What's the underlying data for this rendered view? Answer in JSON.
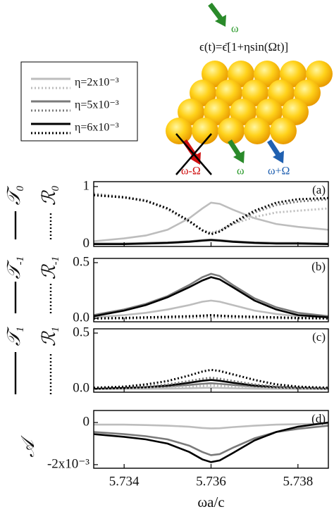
{
  "legend": {
    "entries": [
      {
        "name": "η=2x10⁻³",
        "color": "#bdbdbd"
      },
      {
        "name": "η=5x10⁻³",
        "color": "#7a7a7a"
      },
      {
        "name": "η=6x10⁻³",
        "color": "#000000"
      }
    ]
  },
  "illustration": {
    "incident": "ω",
    "equation": "ϵ(t)=ϵ̄[1+ηsin(Ωt)]",
    "lower": "ω-Ω",
    "center": "ω",
    "upper": "ω+Ω"
  },
  "chart_data": [
    {
      "type": "line",
      "panel_label": "(a)",
      "y_labels": [
        {
          "symbol": "𝒯",
          "sub": "0"
        },
        {
          "symbol": "ℛ",
          "sub": "0"
        }
      ],
      "x": [
        5.7333,
        5.734,
        5.7345,
        5.735,
        5.7355,
        5.7358,
        5.736,
        5.7362,
        5.7365,
        5.737,
        5.7375,
        5.738,
        5.7387
      ],
      "xlim": [
        5.7333,
        5.7387
      ],
      "ylim": [
        -0.04,
        1.085
      ],
      "yticks": [
        0,
        1
      ],
      "series": [
        {
          "color": "#bdbdbd",
          "style": "solid",
          "values": [
            0.05,
            0.1,
            0.15,
            0.25,
            0.45,
            0.62,
            0.72,
            0.7,
            0.6,
            0.45,
            0.35,
            0.3,
            0.25
          ]
        },
        {
          "color": "#7a7a7a",
          "style": "solid",
          "values": [
            0.01,
            0.01,
            0.02,
            0.03,
            0.05,
            0.07,
            0.08,
            0.07,
            0.05,
            0.03,
            0.02,
            0.02,
            0.01
          ]
        },
        {
          "color": "#000000",
          "style": "solid",
          "values": [
            0,
            0,
            0.01,
            0.02,
            0.04,
            0.06,
            0.07,
            0.06,
            0.04,
            0.02,
            0.01,
            0.01,
            0
          ]
        },
        {
          "color": "#bdbdbd",
          "style": "dotted",
          "values": [
            0.88,
            0.82,
            0.75,
            0.6,
            0.38,
            0.24,
            0.2,
            0.24,
            0.35,
            0.47,
            0.55,
            0.58,
            0.62
          ]
        },
        {
          "color": "#7a7a7a",
          "style": "dotted",
          "values": [
            0.86,
            0.82,
            0.76,
            0.62,
            0.4,
            0.24,
            0.18,
            0.22,
            0.35,
            0.55,
            0.68,
            0.74,
            0.78
          ]
        },
        {
          "color": "#000000",
          "style": "dotted",
          "values": [
            0.85,
            0.81,
            0.75,
            0.62,
            0.4,
            0.24,
            0.17,
            0.22,
            0.37,
            0.58,
            0.72,
            0.78,
            0.8
          ]
        }
      ]
    },
    {
      "type": "line",
      "panel_label": "(b)",
      "y_labels": [
        {
          "symbol": "𝒯",
          "sub": "-1"
        },
        {
          "symbol": "ℛ",
          "sub": "-1"
        }
      ],
      "x": [
        5.7333,
        5.734,
        5.7345,
        5.735,
        5.7355,
        5.7358,
        5.736,
        5.7362,
        5.7365,
        5.737,
        5.7375,
        5.738,
        5.7387
      ],
      "xlim": [
        5.7333,
        5.7387
      ],
      "ylim": [
        -0.03,
        0.538
      ],
      "yticks": [
        {
          "value": 0,
          "label": "0.0"
        },
        0.5
      ],
      "series": [
        {
          "color": "#bdbdbd",
          "style": "solid",
          "values": [
            0.01,
            0.03,
            0.05,
            0.08,
            0.12,
            0.15,
            0.16,
            0.15,
            0.12,
            0.07,
            0.04,
            0.02,
            0.01
          ]
        },
        {
          "color": "#7a7a7a",
          "style": "solid",
          "values": [
            0.03,
            0.08,
            0.13,
            0.2,
            0.3,
            0.37,
            0.4,
            0.38,
            0.3,
            0.18,
            0.1,
            0.05,
            0.02
          ]
        },
        {
          "color": "#000000",
          "style": "solid",
          "values": [
            0.02,
            0.07,
            0.12,
            0.19,
            0.28,
            0.34,
            0.37,
            0.35,
            0.28,
            0.16,
            0.08,
            0.03,
            0.01
          ]
        },
        {
          "color": "#bdbdbd",
          "style": "dotted",
          "values": [
            0,
            0,
            0,
            0,
            0.005,
            0.008,
            0.01,
            0.008,
            0.005,
            0,
            0,
            0,
            0
          ]
        },
        {
          "color": "#7a7a7a",
          "style": "dotted",
          "values": [
            0,
            0,
            0.005,
            0.01,
            0.015,
            0.02,
            0.02,
            0.02,
            0.015,
            0.01,
            0.005,
            0,
            0
          ]
        },
        {
          "color": "#000000",
          "style": "dotted",
          "values": [
            0,
            0.005,
            0.01,
            0.015,
            0.02,
            0.025,
            0.03,
            0.025,
            0.02,
            0.015,
            0.01,
            0.005,
            0
          ]
        }
      ]
    },
    {
      "type": "line",
      "panel_label": "(c)",
      "y_labels": [
        {
          "symbol": "𝒯",
          "sub": "1"
        },
        {
          "symbol": "ℛ",
          "sub": "1"
        }
      ],
      "x": [
        5.7333,
        5.734,
        5.7345,
        5.735,
        5.7355,
        5.7358,
        5.736,
        5.7362,
        5.7365,
        5.737,
        5.7375,
        5.738,
        5.7387
      ],
      "xlim": [
        5.7333,
        5.7387
      ],
      "ylim": [
        -0.03,
        0.538
      ],
      "yticks": [
        {
          "value": 0,
          "label": "0.0"
        },
        0.5
      ],
      "series": [
        {
          "color": "#bdbdbd",
          "style": "solid",
          "values": [
            0,
            0,
            0,
            0.002,
            0.005,
            0.008,
            0.01,
            0.008,
            0.005,
            0.002,
            0,
            0,
            0
          ]
        },
        {
          "color": "#7a7a7a",
          "style": "solid",
          "values": [
            0,
            0.005,
            0.01,
            0.02,
            0.035,
            0.045,
            0.05,
            0.045,
            0.035,
            0.02,
            0.01,
            0.005,
            0
          ]
        },
        {
          "color": "#000000",
          "style": "solid",
          "values": [
            0,
            0.008,
            0.015,
            0.03,
            0.055,
            0.072,
            0.08,
            0.072,
            0.055,
            0.03,
            0.015,
            0.008,
            0
          ]
        },
        {
          "color": "#bdbdbd",
          "style": "dotted",
          "values": [
            0,
            0.002,
            0.005,
            0.01,
            0.02,
            0.027,
            0.03,
            0.027,
            0.02,
            0.01,
            0.005,
            0.002,
            0
          ]
        },
        {
          "color": "#7a7a7a",
          "style": "dotted",
          "values": [
            0.005,
            0.01,
            0.02,
            0.04,
            0.07,
            0.09,
            0.1,
            0.09,
            0.07,
            0.04,
            0.02,
            0.01,
            0.005
          ]
        },
        {
          "color": "#000000",
          "style": "dotted",
          "values": [
            0.01,
            0.02,
            0.04,
            0.07,
            0.12,
            0.155,
            0.17,
            0.16,
            0.13,
            0.08,
            0.04,
            0.02,
            0.01
          ]
        }
      ]
    },
    {
      "type": "line",
      "panel_label": "(d)",
      "y_labels": [
        {
          "symbol": "𝒜"
        }
      ],
      "x": [
        5.7333,
        5.734,
        5.7345,
        5.735,
        5.7355,
        5.7358,
        5.736,
        5.7362,
        5.7365,
        5.737,
        5.7375,
        5.738,
        5.7387
      ],
      "xlim": [
        5.7333,
        5.7387
      ],
      "ylim": [
        -0.00217,
        0.00057
      ],
      "yticks": [
        0,
        {
          "value": -0.002,
          "label": "-2x10⁻³"
        }
      ],
      "xticks": [
        5.734,
        5.736,
        5.738
      ],
      "xlabel": "ωa/c",
      "series": [
        {
          "color": "#bdbdbd",
          "style": "solid",
          "values": [
            -0.0001,
            -0.0001,
            -0.00012,
            -0.00015,
            -0.0002,
            -0.00026,
            -0.00028,
            -0.00027,
            -0.00022,
            -0.00015,
            -0.0001,
            -8e-05,
            -5e-05
          ]
        },
        {
          "color": "#7a7a7a",
          "style": "solid",
          "values": [
            -0.00045,
            -0.00055,
            -0.00065,
            -0.0008,
            -0.0011,
            -0.0014,
            -0.00155,
            -0.0015,
            -0.0012,
            -0.00075,
            -0.00045,
            -0.0003,
            -0.00015
          ]
        },
        {
          "color": "#000000",
          "style": "solid",
          "values": [
            -0.00055,
            -0.00068,
            -0.0008,
            -0.001,
            -0.0014,
            -0.00175,
            -0.00188,
            -0.0018,
            -0.00145,
            -0.00085,
            -0.00045,
            -0.0002,
            0
          ]
        }
      ]
    }
  ]
}
